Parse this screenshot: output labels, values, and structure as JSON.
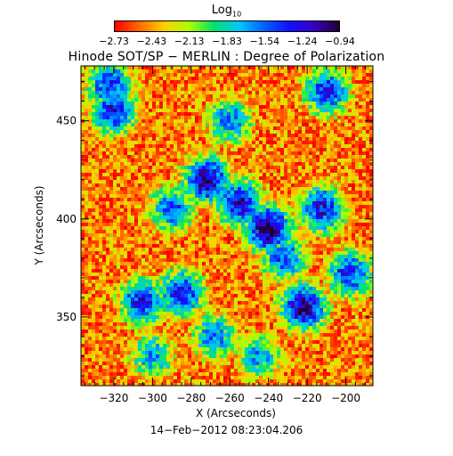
{
  "colorbar": {
    "title": "Log",
    "title_sub": "10",
    "tick_labels": [
      "−2.73",
      "−2.43",
      "−2.13",
      "−1.83",
      "−1.54",
      "−1.24",
      "−0.94"
    ],
    "colors": [
      "#ff0000",
      "#ff6a00",
      "#ffd000",
      "#a8ff00",
      "#00e070",
      "#00c8ff",
      "#0060ff",
      "#1010ff",
      "#3a00c0",
      "#200030"
    ]
  },
  "chart_data": {
    "type": "heatmap",
    "title": "Hinode SOT/SP − MERLIN : Degree of Polarization",
    "xlabel": "X (Arcseconds)",
    "ylabel": "Y (Arcseconds)",
    "xlim": [
      -337,
      -186
    ],
    "ylim": [
      315,
      478
    ],
    "x_ticks": [
      -320,
      -300,
      -280,
      -260,
      -240,
      -220,
      -200
    ],
    "y_ticks": [
      350,
      400,
      450
    ],
    "color_scale_range": [
      -2.73,
      -0.94
    ],
    "color_scale": "log10",
    "strong_regions": [
      {
        "x": -240,
        "y": 395,
        "value": -1.0
      },
      {
        "x": -272,
        "y": 420,
        "value": -1.1
      },
      {
        "x": -255,
        "y": 408,
        "value": -1.2
      },
      {
        "x": -222,
        "y": 355,
        "value": -1.1
      },
      {
        "x": -305,
        "y": 358,
        "value": -1.3
      },
      {
        "x": -285,
        "y": 362,
        "value": -1.3
      },
      {
        "x": -320,
        "y": 455,
        "value": -1.3
      },
      {
        "x": -322,
        "y": 468,
        "value": -1.4
      },
      {
        "x": -210,
        "y": 465,
        "value": -1.4
      },
      {
        "x": -198,
        "y": 372,
        "value": -1.4
      },
      {
        "x": -290,
        "y": 405,
        "value": -1.5
      },
      {
        "x": -260,
        "y": 450,
        "value": -1.6
      },
      {
        "x": -232,
        "y": 380,
        "value": -1.5
      },
      {
        "x": -268,
        "y": 340,
        "value": -1.6
      },
      {
        "x": -300,
        "y": 330,
        "value": -1.7
      },
      {
        "x": -245,
        "y": 330,
        "value": -1.7
      },
      {
        "x": -212,
        "y": 405,
        "value": -1.3
      }
    ]
  },
  "footer": {
    "date": "14−Feb−2012 08:23:04.206"
  }
}
